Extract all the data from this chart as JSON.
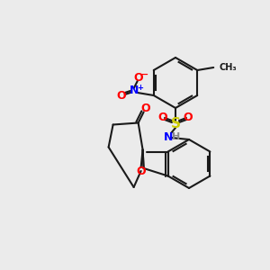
{
  "background_color": "#ebebeb",
  "bond_color": "#1a1a1a",
  "bond_width": 1.5,
  "atom_colors": {
    "N": "#0000ff",
    "O": "#ff0000",
    "S": "#cccc00",
    "H": "#aaaaaa",
    "C": "#1a1a1a"
  },
  "font_size": 8,
  "fig_size": [
    3.0,
    3.0
  ],
  "dpi": 100
}
